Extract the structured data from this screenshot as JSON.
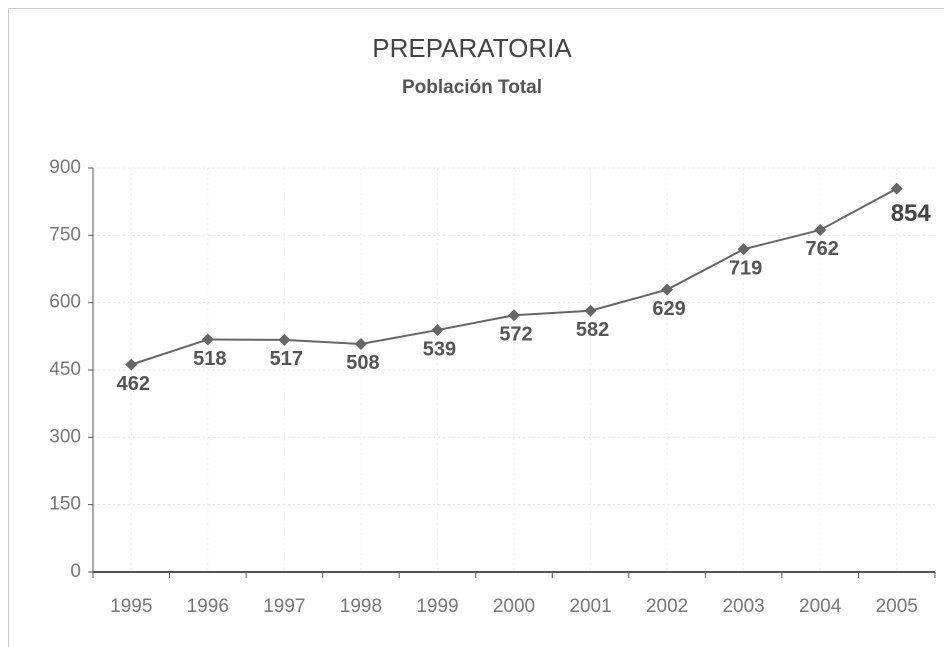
{
  "chart_data": {
    "type": "line",
    "title": "PREPARATORIA",
    "subtitle": "Población Total",
    "categories": [
      "1995",
      "1996",
      "1997",
      "1998",
      "1999",
      "2000",
      "2001",
      "2002",
      "2003",
      "2004",
      "2005"
    ],
    "series": [
      {
        "name": "Población Total",
        "color": "#666666",
        "values": [
          462,
          518,
          517,
          508,
          539,
          572,
          582,
          629,
          719,
          762,
          854
        ]
      }
    ],
    "ylim": [
      0,
      900
    ],
    "yticks": [
      0,
      150,
      300,
      450,
      600,
      750,
      900
    ],
    "grid": true
  }
}
